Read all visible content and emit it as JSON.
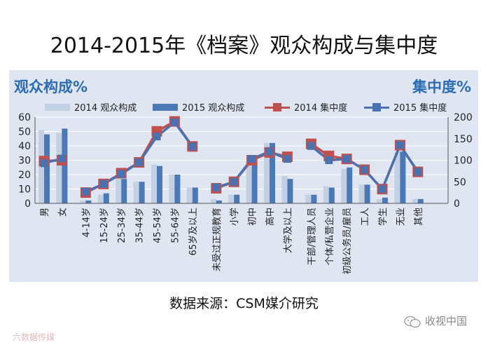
{
  "title": "2014-2015年《档案》观众构成与集中度",
  "left_axis_title": "观众构成%",
  "right_axis_title": "集中度%",
  "legend": [
    "2014 观众构成",
    "2015 观众构成",
    "2014 集中度",
    "2015 集中度"
  ],
  "source": "数据来源：CSM媒介研究",
  "brand": "收视中国",
  "watermark": "六数据传媒",
  "colors": {
    "bar2014": "#c3cfe2",
    "bar2015": "#4a79b5",
    "line2014": "#c0504d",
    "line2015": "#4a72b0",
    "accent": "#2b6cb3",
    "panel": "#dfe6f2"
  },
  "chart_data": {
    "type": "bar",
    "categories": [
      "男",
      "女",
      "4-14岁",
      "15-24岁",
      "25-34岁",
      "35-44岁",
      "45-54岁",
      "55-64岁",
      "65岁及以上",
      "未受过正规教育",
      "小学",
      "初中",
      "高中",
      "大学及以上",
      "干部/管理人员",
      "个体/私营企业",
      "初级公务员/雇员",
      "工人",
      "学生",
      "无业",
      "其他"
    ],
    "groups": [
      2,
      7,
      5,
      7
    ],
    "series": [
      {
        "name": "2014 观众构成",
        "kind": "bar",
        "axis": "left",
        "values": [
          51,
          49,
          2,
          6,
          19,
          15,
          27,
          20,
          11,
          3,
          6,
          31,
          42,
          19,
          6,
          12,
          24,
          13,
          3,
          36,
          3
        ]
      },
      {
        "name": "2015 观众构成",
        "kind": "bar",
        "axis": "left",
        "values": [
          48,
          52,
          2,
          7,
          17,
          15,
          26,
          20,
          11,
          2,
          6,
          31,
          42,
          17,
          6,
          11,
          25,
          13,
          4,
          36,
          3
        ]
      },
      {
        "name": "2014 集中度",
        "kind": "line",
        "axis": "right",
        "values": [
          98,
          100,
          25,
          45,
          70,
          95,
          167,
          190,
          132,
          35,
          50,
          100,
          118,
          108,
          138,
          110,
          103,
          78,
          33,
          135,
          73
        ]
      },
      {
        "name": "2015 集中度",
        "kind": "line",
        "axis": "right",
        "values": [
          93,
          104,
          27,
          45,
          68,
          95,
          155,
          188,
          132,
          37,
          50,
          103,
          120,
          103,
          133,
          100,
          103,
          78,
          33,
          135,
          73
        ]
      }
    ],
    "ylim_left": [
      0,
      60
    ],
    "yticks_left": [
      0,
      10,
      20,
      30,
      40,
      50,
      60
    ],
    "ylim_right": [
      0,
      200
    ],
    "yticks_right": [
      0,
      50,
      100,
      150,
      200
    ]
  }
}
